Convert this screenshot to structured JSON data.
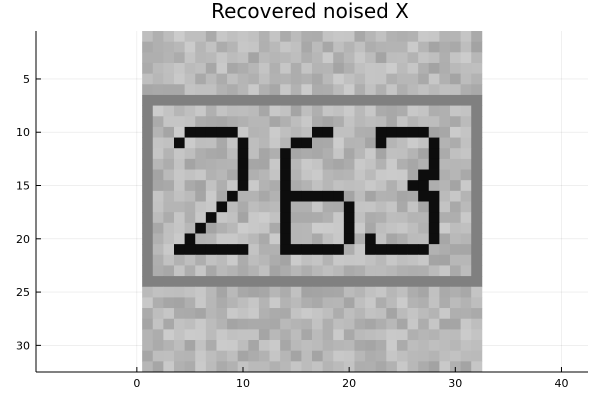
{
  "chart_data": {
    "type": "heatmap",
    "title": "Recovered noised X",
    "colormap": "grayscale",
    "grid": true,
    "legend": "none",
    "x_range": [
      -9.5,
      42.5
    ],
    "y_range": [
      0.5,
      32.5
    ],
    "y_reversed": true,
    "image_extent": {
      "x": [
        0.5,
        32.5
      ],
      "y": [
        0.5,
        32.5
      ]
    },
    "x_ticks": [
      0,
      10,
      20,
      30,
      40
    ],
    "y_ticks": [
      5,
      10,
      15,
      20,
      25,
      30
    ],
    "image_content": {
      "digits": "263",
      "background_gray": 0.72,
      "noise_amplitude": 0.08,
      "frame_gray": 0.5,
      "frame_rows": [
        7,
        24
      ],
      "frame_cols": [
        1,
        32
      ],
      "stroke_gray": 0.05
    }
  }
}
